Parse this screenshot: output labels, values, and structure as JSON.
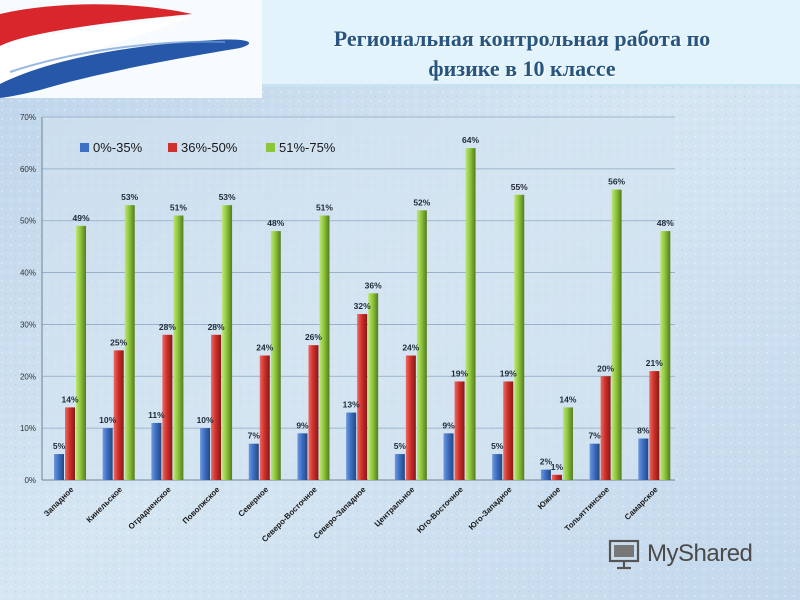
{
  "title": {
    "line1": "Региональная контрольная работа по",
    "line2": "физике в 10 классе"
  },
  "watermark": {
    "text": "MyShared",
    "icon": "projector-screen-icon"
  },
  "colors": {
    "series_0_35": "#3d6fc4",
    "series_36_50": "#d0302c",
    "series_51_75": "#8cc63b",
    "title": "#27557f",
    "header_band": "#dff1fa",
    "flag_red": "#d8262c",
    "flag_blue": "#2757a8"
  },
  "chart_data": {
    "type": "bar",
    "title": "",
    "xlabel": "",
    "ylabel": "",
    "ylim": [
      0,
      70
    ],
    "yticks": [
      "0%",
      "10%",
      "20%",
      "30%",
      "40%",
      "50%",
      "60%",
      "70%"
    ],
    "grid": true,
    "legend_position": "top-left",
    "categories": [
      "Западное",
      "Кинельское",
      "Отрадненское",
      "Поволжское",
      "Северное",
      "Северо-Восточное",
      "Северо-Западное",
      "Центральное",
      "Юго-Восточное",
      "Юго-Западное",
      "Южное",
      "Тольяттинское",
      "Самарское"
    ],
    "series": [
      {
        "name": "0%-35%",
        "values": [
          5,
          10,
          11,
          10,
          7,
          9,
          13,
          5,
          9,
          5,
          2,
          7,
          8
        ],
        "labels": [
          "5%",
          "10%",
          "11%",
          "10%",
          "7%",
          "9%",
          "13%",
          "5%",
          "9%",
          "5%",
          "2%",
          "7%",
          "8%"
        ]
      },
      {
        "name": "36%-50%",
        "values": [
          14,
          25,
          28,
          28,
          24,
          26,
          32,
          24,
          19,
          19,
          1,
          20,
          21
        ],
        "labels": [
          "14%",
          "25%",
          "28%",
          "28%",
          "24%",
          "26%",
          "32%",
          "24%",
          "19%",
          "19%",
          "1%",
          "20%",
          "21%"
        ]
      },
      {
        "name": "51%-75%",
        "values": [
          49,
          53,
          51,
          53,
          48,
          51,
          36,
          52,
          64,
          55,
          14,
          56,
          48
        ],
        "labels": [
          "49%",
          "53%",
          "51%",
          "53%",
          "48%",
          "51%",
          "36%",
          "52%",
          "64%",
          "55%",
          "14%",
          "56%",
          "48%"
        ]
      }
    ]
  }
}
